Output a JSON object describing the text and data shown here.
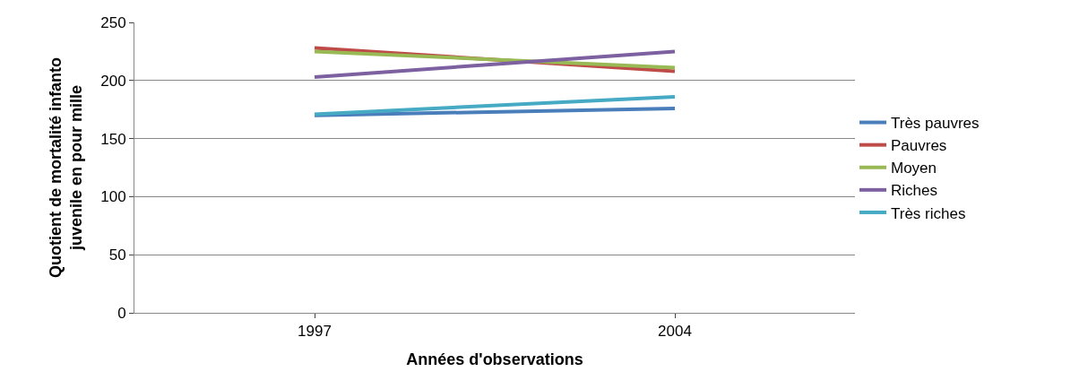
{
  "chart_data": {
    "type": "line",
    "xlabel": "Années d'observations",
    "ylabel": "Quotient de mortalité infanto juvenile en pour mille",
    "categories": [
      "1997",
      "2004"
    ],
    "series": [
      {
        "name": "Très pauvres",
        "color": "#4a7ebb",
        "values": [
          170,
          176
        ]
      },
      {
        "name": "Pauvres",
        "color": "#be4b48",
        "values": [
          228,
          208
        ]
      },
      {
        "name": "Moyen",
        "color": "#98b954",
        "values": [
          225,
          211
        ]
      },
      {
        "name": "Riches",
        "color": "#7d60a0",
        "values": [
          203,
          225
        ]
      },
      {
        "name": "Très riches",
        "color": "#46aac5",
        "values": [
          171,
          186
        ]
      }
    ],
    "ylim": [
      0,
      250
    ],
    "yticks": [
      0,
      50,
      100,
      150,
      200,
      250
    ],
    "grid": "y",
    "legend": "right",
    "marker": "none",
    "line_style": "solid"
  }
}
